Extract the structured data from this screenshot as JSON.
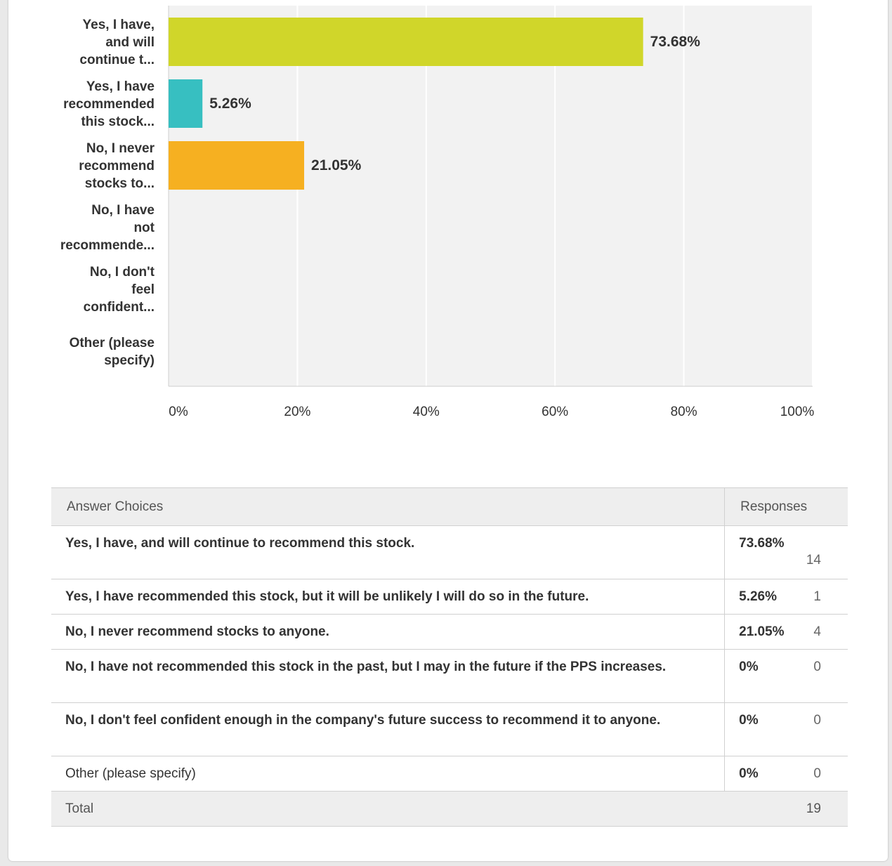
{
  "chart_data": {
    "type": "bar",
    "orientation": "horizontal",
    "categories": [
      [
        "Yes, I have,",
        "and will",
        "continue t..."
      ],
      [
        "Yes, I have",
        "recommended",
        "this stock..."
      ],
      [
        "No, I never",
        "recommend",
        "stocks to..."
      ],
      [
        "No, I have",
        "not",
        "recommende..."
      ],
      [
        "No, I don't",
        "feel",
        "confident..."
      ],
      [
        "Other (please",
        "specify)"
      ]
    ],
    "values": [
      73.68,
      5.26,
      21.05,
      0,
      0,
      0
    ],
    "value_labels": [
      "73.68%",
      "5.26%",
      "21.05%",
      "",
      "",
      ""
    ],
    "colors": [
      "#d0d62a",
      "#37bfc1",
      "#f6b021",
      "#e05a49",
      "#6c9bd2",
      "#a97fc9"
    ],
    "xlim": [
      0,
      100
    ],
    "ticks": [
      0,
      20,
      40,
      60,
      80,
      100
    ],
    "tick_labels": [
      "0%",
      "20%",
      "40%",
      "60%",
      "80%",
      "100%"
    ],
    "grid": true,
    "plot_background": "#f2f2f2"
  },
  "table": {
    "headers": {
      "choices": "Answer Choices",
      "responses": "Responses"
    },
    "rows": [
      {
        "choice": "Yes, I have, and will continue to recommend this stock.",
        "pct": "73.68%",
        "count": "14"
      },
      {
        "choice": "Yes, I have recommended this stock, but it will be unlikely I will do so in the future.",
        "pct": "5.26%",
        "count": "1"
      },
      {
        "choice": "No, I never recommend stocks to anyone.",
        "pct": "21.05%",
        "count": "4"
      },
      {
        "choice": "No, I have not recommended this stock in the past, but I may in the future if the PPS increases.",
        "pct": "0%",
        "count": "0"
      },
      {
        "choice": "No, I don't feel confident enough in the company's future success to recommend it to anyone.",
        "pct": "0%",
        "count": "0"
      },
      {
        "choice": "Other (please specify)",
        "pct": "0%",
        "count": "0"
      }
    ],
    "total_label": "Total",
    "total_count": "19"
  }
}
